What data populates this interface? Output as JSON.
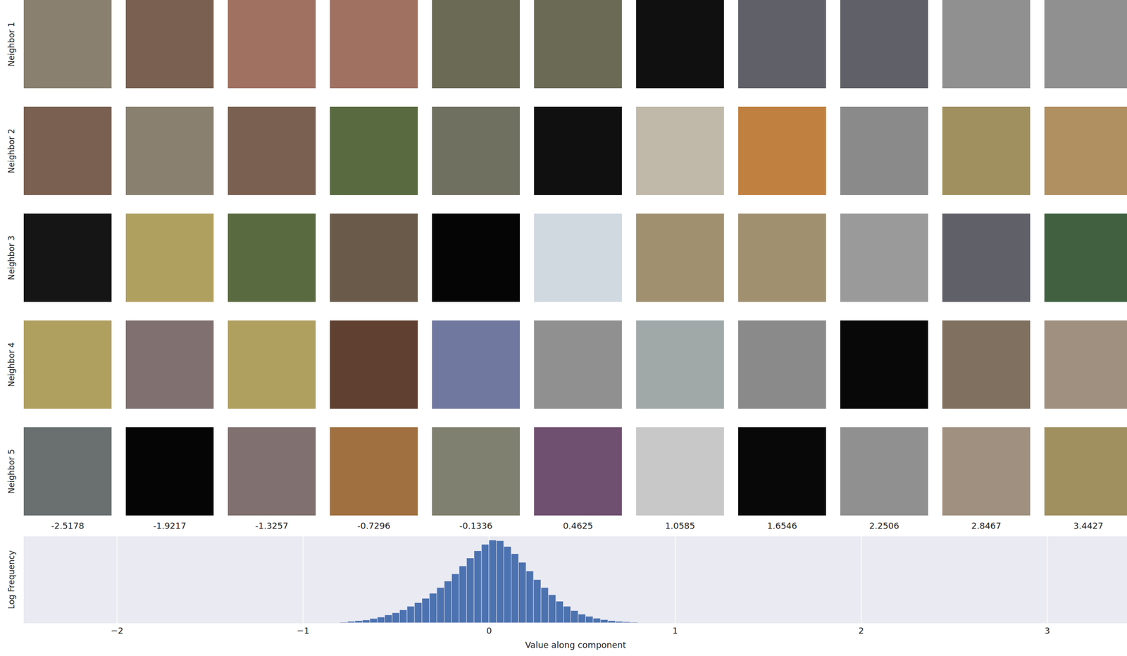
{
  "image_grid": {
    "row_labels": [
      "Neighbor 1",
      "Neighbor 2",
      "Neighbor 3",
      "Neighbor 4",
      "Neighbor 5"
    ],
    "column_values": [
      -2.5178,
      -1.9217,
      -1.3257,
      -0.7296,
      -0.1336,
      0.4625,
      1.0585,
      1.6546,
      2.2506,
      2.8467,
      3.4427
    ],
    "colors": [
      [
        "#8a8070",
        "#7a6050",
        "#a07060",
        "#a07060",
        "#6a6a55",
        "#6a6a55",
        "#101010",
        "#606068",
        "#606068",
        "#909090",
        "#909090"
      ],
      [
        "#7a6050",
        "#8a8070",
        "#7a6050",
        "#5a6a40",
        "#707060",
        "#101010",
        "#c0b8a8",
        "#c08040",
        "#8a8a8a",
        "#a09060",
        "#b09060"
      ],
      [
        "#151515",
        "#b0a060",
        "#5a6a40",
        "#6a5a4a",
        "#050505",
        "#d0d8e0",
        "#a09070",
        "#a09070",
        "#9a9a9a",
        "#606068",
        "#406040"
      ],
      [
        "#b0a060",
        "#807070",
        "#b0a060",
        "#604030",
        "#7078a0",
        "#909090",
        "#a0a8a8",
        "#8a8a8a",
        "#080808",
        "#807060",
        "#a09080"
      ],
      [
        "#6a7070",
        "#050505",
        "#807070",
        "#a07040",
        "#808070",
        "#705070",
        "#c8c8c8",
        "#080808",
        "#909090",
        "#a09080",
        "#a09060"
      ]
    ]
  },
  "chart_data": {
    "type": "histogram",
    "xlabel": "Value along component",
    "ylabel": "Log Frequency",
    "bins": [
      -0.8,
      -0.76,
      -0.72,
      -0.68,
      -0.64,
      -0.6,
      -0.56,
      -0.52,
      -0.48,
      -0.44,
      -0.4,
      -0.36,
      -0.32,
      -0.28,
      -0.24,
      -0.2,
      -0.16,
      -0.12,
      -0.08,
      -0.04,
      0,
      0.04,
      0.08,
      0.12,
      0.16,
      0.2,
      0.24,
      0.28,
      0.32,
      0.36,
      0.4,
      0.44,
      0.48,
      0.52,
      0.56,
      0.6,
      0.64,
      0.68,
      0.72,
      0.76,
      0.8,
      0.84
    ],
    "values": [
      0.05,
      0.1,
      0.15,
      0.2,
      0.3,
      0.4,
      0.55,
      0.7,
      0.9,
      1.15,
      1.4,
      1.7,
      2.05,
      2.45,
      2.9,
      3.4,
      3.95,
      4.5,
      5.0,
      5.45,
      5.75,
      5.7,
      5.3,
      4.8,
      4.2,
      3.6,
      3.0,
      2.45,
      1.95,
      1.5,
      1.15,
      0.85,
      0.6,
      0.45,
      0.32,
      0.22,
      0.15,
      0.1,
      0.07,
      0.05,
      0.03
    ],
    "color": "#4c72b0",
    "xlim": [
      -2.5,
      3.43
    ],
    "xticks": [
      {
        "value": -2,
        "label": "−2"
      },
      {
        "value": -1,
        "label": "−1"
      },
      0,
      1,
      2,
      3
    ],
    "ylim": [
      0,
      6
    ],
    "yticks": [],
    "grid": true,
    "tick_labels": "x"
  }
}
